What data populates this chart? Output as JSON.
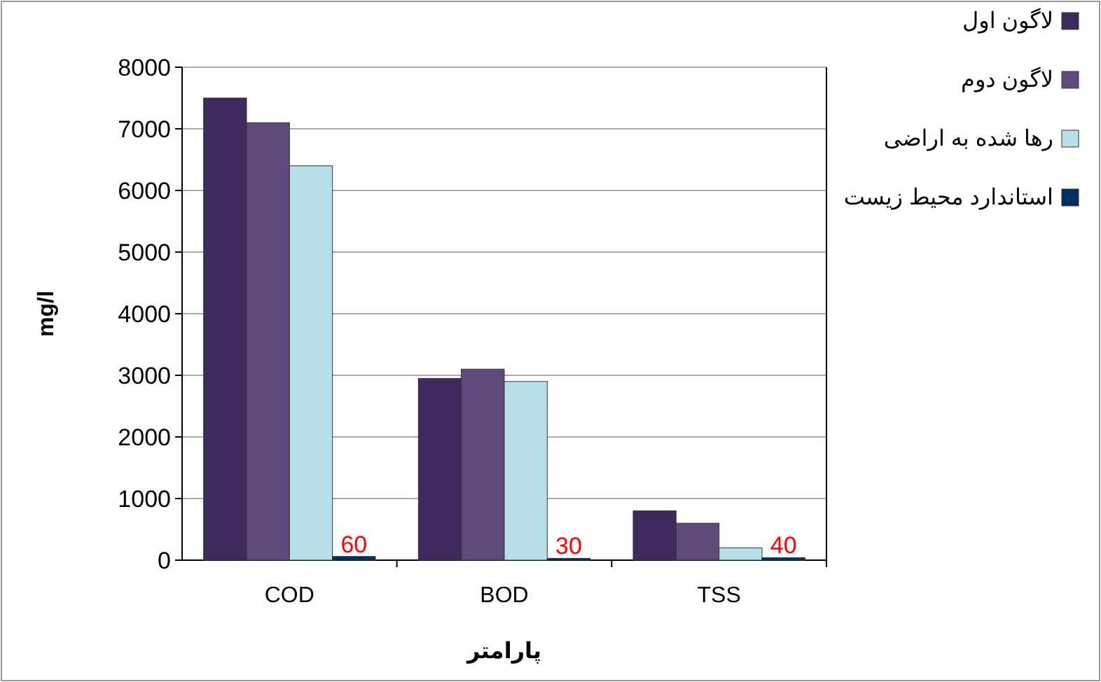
{
  "chart_data": {
    "type": "bar",
    "xlabel": "پارامتر",
    "ylabel": "mg/l",
    "categories": [
      "COD",
      "BOD",
      "TSS"
    ],
    "series": [
      {
        "name": "لاگون اول",
        "color": "#3f2a5e",
        "values": [
          7500,
          2950,
          800
        ]
      },
      {
        "name": "لاگون دوم",
        "color": "#5f4b7b",
        "values": [
          7100,
          3100,
          600
        ]
      },
      {
        "name": "رها شده به اراضی",
        "color": "#b7dfe8",
        "values": [
          6400,
          2900,
          200
        ]
      },
      {
        "name": "استاندارد محیط زیست",
        "color": "#00305f",
        "values": [
          60,
          30,
          40
        ],
        "value_labels": [
          "60",
          "30",
          "40"
        ]
      }
    ],
    "ylim": [
      0,
      8000
    ],
    "yticks": [
      0,
      1000,
      2000,
      3000,
      4000,
      5000,
      6000,
      7000,
      8000
    ],
    "grid": "y",
    "legend": "right"
  }
}
